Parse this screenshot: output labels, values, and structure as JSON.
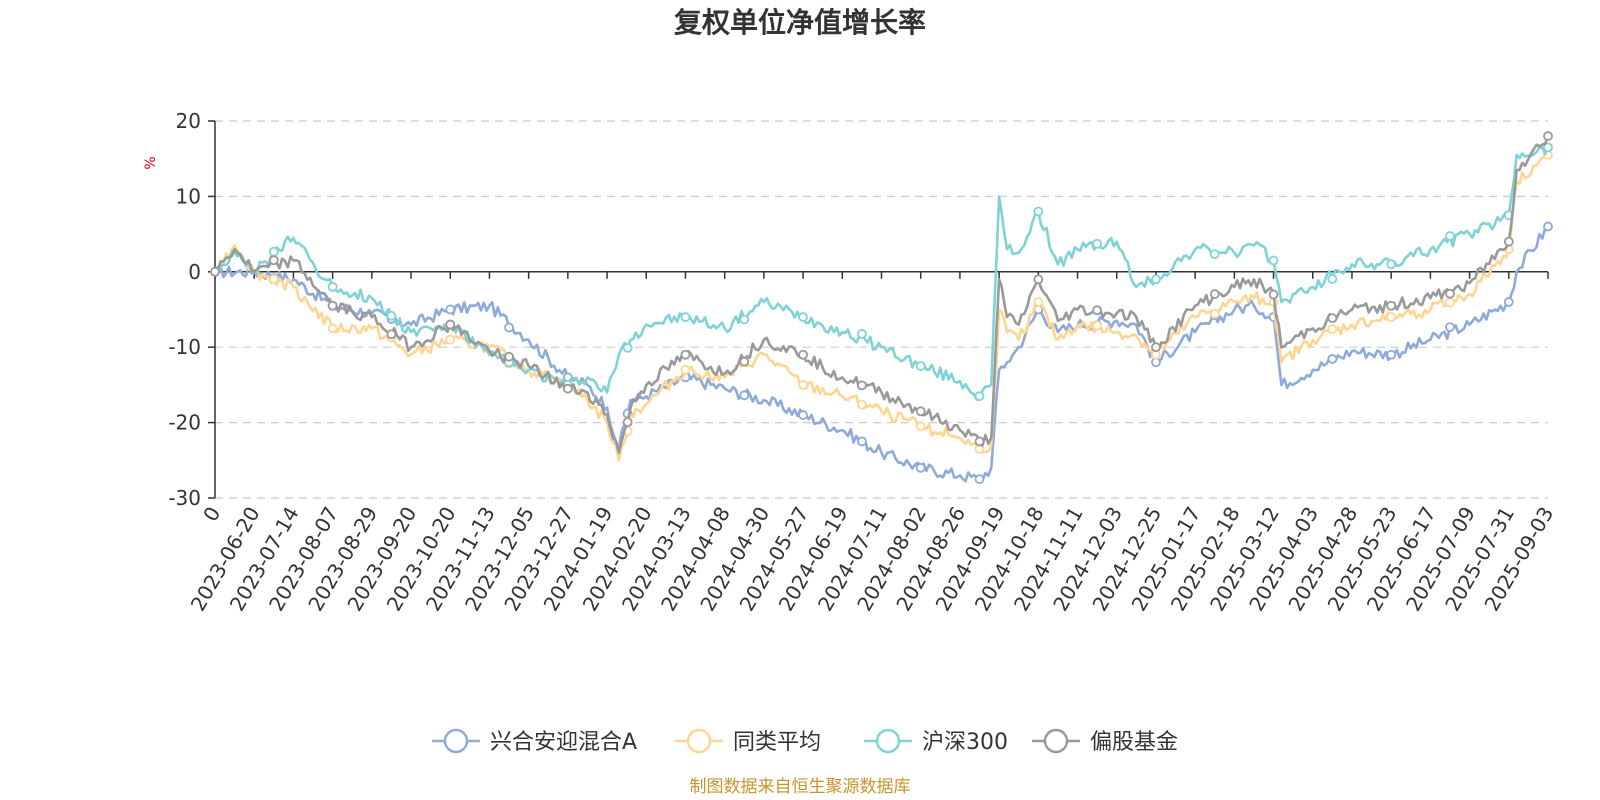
{
  "chart_data": {
    "type": "line",
    "title": "复权单位净值增长率",
    "ylabel": "%",
    "ylim": [
      -30,
      20
    ],
    "yticks": [
      "20",
      "10",
      "0",
      "-10",
      "-20",
      "-30"
    ],
    "x_origin_label": "0",
    "categories": [
      "2023-06-20",
      "2023-07-14",
      "2023-08-07",
      "2023-08-29",
      "2023-09-20",
      "2023-10-20",
      "2023-11-13",
      "2023-12-05",
      "2023-12-27",
      "2024-01-19",
      "2024-02-20",
      "2024-03-13",
      "2024-04-08",
      "2024-04-30",
      "2024-05-27",
      "2024-06-19",
      "2024-07-11",
      "2024-08-02",
      "2024-08-26",
      "2024-09-19",
      "2024-10-18",
      "2024-11-11",
      "2024-12-03",
      "2024-12-25",
      "2025-01-17",
      "2025-02-18",
      "2025-03-12",
      "2025-04-03",
      "2025-04-28",
      "2025-05-23",
      "2025-06-17",
      "2025-07-09",
      "2025-07-31",
      "2025-09-03"
    ],
    "grid": true,
    "legend_position": "bottom",
    "series": [
      {
        "name": "兴合安迎混合A",
        "color": "#8eaadb",
        "x": [
          0,
          1,
          2,
          3,
          4,
          5,
          6,
          7,
          8,
          9,
          9.5,
          10,
          10.3,
          10.6,
          11,
          12,
          13,
          14,
          15,
          16,
          17,
          18,
          19,
          19.5,
          19.8,
          20,
          20.2,
          20.5,
          21,
          21.5,
          22,
          23,
          23.5,
          24,
          25,
          26,
          26.5,
          27,
          27.2,
          28,
          29,
          30,
          31,
          32,
          33,
          33.2,
          34
        ],
        "values": [
          0,
          0,
          -1,
          -4.5,
          -5.5,
          -7,
          -5,
          -4.5,
          -9,
          -14,
          -15,
          -18,
          -23.5,
          -17,
          -16.5,
          -14,
          -15.5,
          -17,
          -19,
          -21,
          -24,
          -26,
          -27,
          -27.5,
          -26,
          -13,
          -12,
          -10,
          -5,
          -8,
          -7,
          -6.5,
          -7,
          -12,
          -8,
          -5,
          -4.5,
          -6,
          -15,
          -13,
          -10.5,
          -11,
          -9,
          -7,
          -4,
          0,
          6
        ]
      },
      {
        "name": "同类平均",
        "color": "#ffd591",
        "x": [
          0,
          0.5,
          1,
          2,
          3,
          4,
          5,
          6,
          7,
          8,
          9,
          9.5,
          10,
          10.3,
          10.6,
          11,
          12,
          13,
          14,
          15,
          16,
          17,
          18,
          19,
          19.5,
          19.8,
          20,
          20.2,
          20.5,
          21,
          21.5,
          22,
          23,
          23.5,
          24,
          25,
          26,
          26.5,
          27,
          27.2,
          28,
          29,
          30,
          31,
          32,
          33,
          33.2,
          34
        ],
        "values": [
          0,
          3.5,
          0,
          -2,
          -7.5,
          -7.5,
          -11,
          -9,
          -10,
          -13,
          -15,
          -17,
          -20,
          -25,
          -19,
          -17.5,
          -13,
          -14,
          -11,
          -15,
          -16.5,
          -18.5,
          -20.5,
          -22,
          -23.5,
          -23,
          -5,
          -8,
          -9,
          -4,
          -9,
          -7,
          -8,
          -8.5,
          -11,
          -6,
          -4,
          -3.5,
          -4,
          -12,
          -9,
          -7,
          -6,
          -5,
          -3,
          3,
          12,
          15.5
        ]
      },
      {
        "name": "沪深300",
        "color": "#7fd3d6",
        "x": [
          0,
          0.5,
          1,
          2,
          2.2,
          2.8,
          3,
          4,
          5,
          6,
          7,
          8,
          9,
          9.5,
          10,
          10.3,
          10.6,
          11,
          12,
          13,
          14,
          15,
          16,
          17,
          18,
          19,
          19.5,
          19.8,
          20,
          20.2,
          20.5,
          21,
          21.5,
          22,
          23,
          23.5,
          24,
          25,
          26,
          26.5,
          27,
          27.2,
          28,
          29,
          30,
          31,
          32,
          33,
          33.2,
          34
        ],
        "values": [
          0,
          2.5,
          0,
          4.5,
          3.5,
          -1,
          -2,
          -3.5,
          -8,
          -7,
          -11,
          -13,
          -15,
          -14,
          -16,
          -11,
          -9,
          -7,
          -6,
          -7.5,
          -4,
          -6,
          -8,
          -10,
          -12.5,
          -14.5,
          -16.5,
          -15,
          10,
          3,
          2.5,
          8,
          1,
          3,
          4,
          -2,
          -1,
          3,
          2.5,
          3.5,
          1.5,
          -4,
          -2,
          1,
          1,
          3,
          5,
          7.5,
          15.5,
          16.5
        ]
      },
      {
        "name": "偏股基金",
        "color": "#999999",
        "x": [
          0,
          0.5,
          1,
          2,
          3,
          4,
          5,
          6,
          7,
          8,
          9,
          9.5,
          10,
          10.3,
          10.6,
          11,
          12,
          13,
          14,
          15,
          16,
          17,
          18,
          19,
          19.5,
          19.8,
          20,
          20.2,
          20.5,
          21,
          21.5,
          22,
          23,
          23.5,
          24,
          25,
          26,
          26.5,
          27,
          27.2,
          28,
          29,
          30,
          31,
          32,
          33,
          33.2,
          34
        ],
        "values": [
          0,
          3,
          0,
          1.5,
          -4.5,
          -6,
          -10,
          -7,
          -10.5,
          -12.5,
          -15.5,
          -16,
          -19,
          -24,
          -18,
          -15,
          -11,
          -13.5,
          -9,
          -11,
          -14,
          -16,
          -18.5,
          -21,
          -22.5,
          -22,
          -1,
          -6,
          -7,
          -1,
          -6.5,
          -5,
          -5.5,
          -6,
          -10,
          -4.5,
          -2,
          -1,
          -3,
          -10,
          -7.5,
          -5,
          -4.5,
          -3.5,
          -1.5,
          4,
          13.5,
          18
        ]
      }
    ]
  },
  "source_note": "制图数据来自恒生聚源数据库"
}
